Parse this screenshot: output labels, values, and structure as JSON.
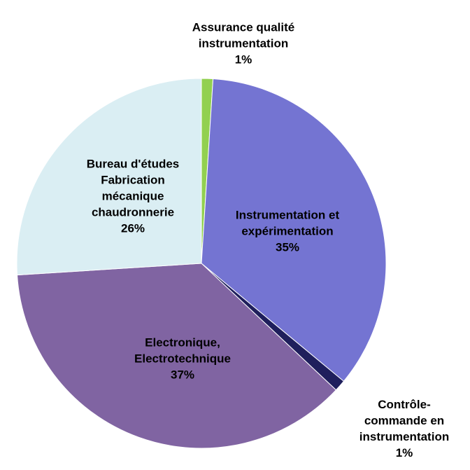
{
  "chart_data": {
    "type": "pie",
    "categories": [
      "Assurance qualité instrumentation",
      "Instrumentation et expérimentation",
      "Contrôle-commande en instrumentation",
      "Electronique, Electrotechnique",
      "Bureau d'études Fabrication mécanique chaudronnerie"
    ],
    "values": [
      1,
      35,
      1,
      37,
      26
    ],
    "value_labels": [
      "1%",
      "35%",
      "1%",
      "37%",
      "26%"
    ],
    "colors": [
      "#92d050",
      "#7474d2",
      "#1f1f5c",
      "#8064a2",
      "#daeef3"
    ]
  }
}
